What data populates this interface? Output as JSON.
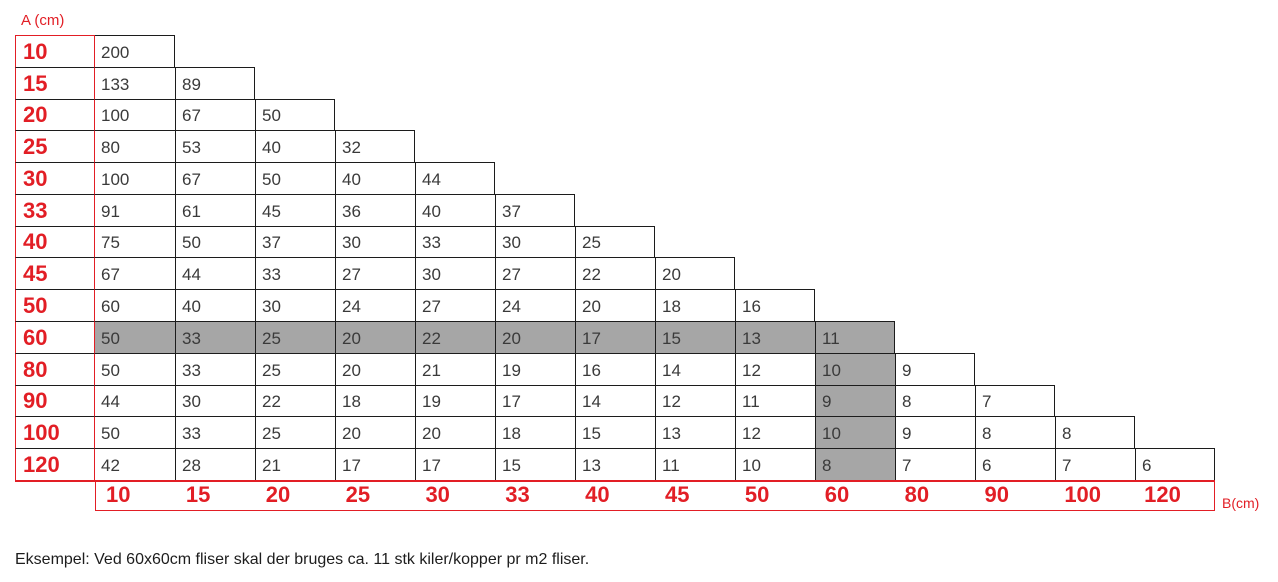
{
  "axes": {
    "row_axis_label": "A (cm)",
    "col_axis_label": "B(cm)"
  },
  "table": {
    "row_labels": [
      "10",
      "15",
      "20",
      "25",
      "30",
      "33",
      "40",
      "45",
      "50",
      "60",
      "80",
      "90",
      "100",
      "120"
    ],
    "col_labels": [
      "10",
      "15",
      "20",
      "25",
      "30",
      "33",
      "40",
      "45",
      "50",
      "60",
      "80",
      "90",
      "100",
      "120"
    ],
    "rows": [
      [
        200
      ],
      [
        133,
        89
      ],
      [
        100,
        67,
        50
      ],
      [
        80,
        53,
        40,
        32
      ],
      [
        100,
        67,
        50,
        40,
        44
      ],
      [
        91,
        61,
        45,
        36,
        40,
        37
      ],
      [
        75,
        50,
        37,
        30,
        33,
        30,
        25
      ],
      [
        67,
        44,
        33,
        27,
        30,
        27,
        22,
        20
      ],
      [
        60,
        40,
        30,
        24,
        27,
        24,
        20,
        18,
        16
      ],
      [
        50,
        33,
        25,
        20,
        22,
        20,
        17,
        15,
        13,
        11
      ],
      [
        50,
        33,
        25,
        20,
        21,
        19,
        16,
        14,
        12,
        10,
        9
      ],
      [
        44,
        30,
        22,
        18,
        19,
        17,
        14,
        12,
        11,
        9,
        8,
        7
      ],
      [
        50,
        33,
        25,
        20,
        20,
        18,
        15,
        13,
        12,
        10,
        9,
        8,
        8
      ],
      [
        42,
        28,
        21,
        17,
        17,
        15,
        13,
        11,
        10,
        8,
        7,
        6,
        7,
        6
      ]
    ],
    "highlight": {
      "row_index": 9,
      "col_index": 9,
      "highlighted_value": "11"
    }
  },
  "footer_note": "Eksempel: Ved 60x60cm fliser skal der bruges ca. 11 stk kiler/kopper pr m2 fliser.",
  "colors": {
    "red": "#e21e25",
    "line": "#1c1c1c",
    "number_text": "#3a3a3a",
    "highlight_gray": "#a6a6a6"
  }
}
